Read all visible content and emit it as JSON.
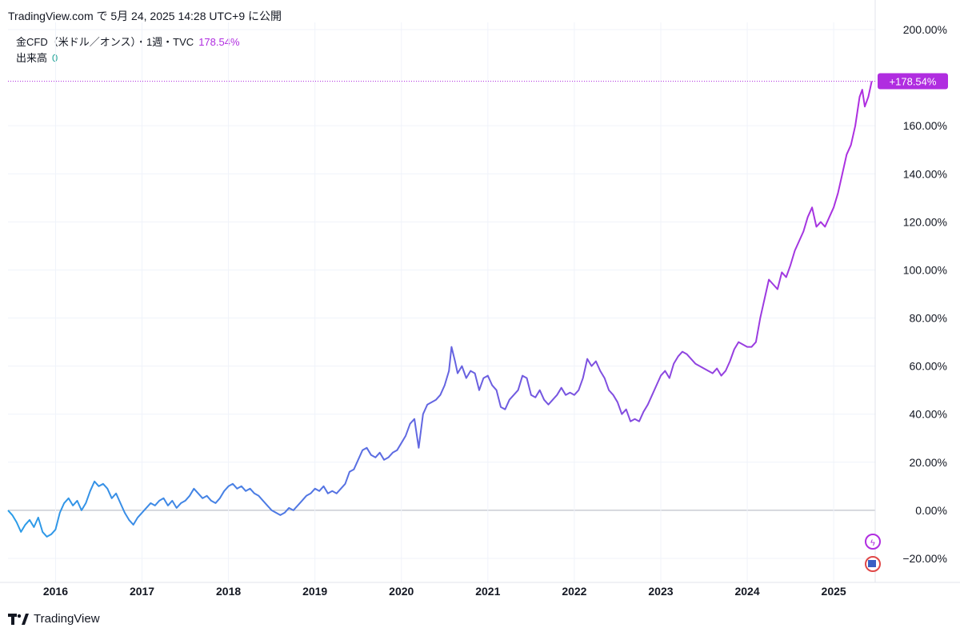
{
  "header": {
    "text": "TradingView.com で 5月 24, 2025 14:28 UTC+9 に公開"
  },
  "legend": {
    "symbol": "金CFD（米ドル／オンス）・1週・TVC",
    "value": "178.54%",
    "volume_label": "出来高",
    "volume_value": "0"
  },
  "footer": {
    "brand": "TradingView",
    "logo_icon": "tradingview-logo-icon"
  },
  "colors": {
    "line_start": "#2a9de8",
    "line_mid": "#6a5fe0",
    "line_end": "#b02de0",
    "badge": "#b02de0",
    "grid": "#f0f3fa",
    "zero_line": "#b2b5be"
  },
  "chart_data": {
    "type": "line",
    "y_axis": {
      "ticks": [
        "200.00%",
        "160.00%",
        "140.00%",
        "120.00%",
        "100.00%",
        "80.00%",
        "60.00%",
        "40.00%",
        "20.00%",
        "0.00%",
        "−20.00%"
      ],
      "tick_values": [
        200,
        160,
        140,
        120,
        100,
        80,
        60,
        40,
        20,
        0,
        -20
      ],
      "range": [
        -30,
        203
      ]
    },
    "x_axis": {
      "ticks": [
        "2016",
        "2017",
        "2018",
        "2019",
        "2020",
        "2021",
        "2022",
        "2023",
        "2024",
        "2025"
      ],
      "range": [
        2015.45,
        2025.48
      ]
    },
    "last_value": 178.54,
    "last_label": "+178.54%",
    "grid": true,
    "series": [
      {
        "points": [
          [
            2015.45,
            0
          ],
          [
            2015.5,
            -2
          ],
          [
            2015.55,
            -5
          ],
          [
            2015.6,
            -9
          ],
          [
            2015.65,
            -6
          ],
          [
            2015.7,
            -4
          ],
          [
            2015.75,
            -7
          ],
          [
            2015.8,
            -3
          ],
          [
            2015.85,
            -9
          ],
          [
            2015.9,
            -11
          ],
          [
            2015.95,
            -10
          ],
          [
            2016.0,
            -8
          ],
          [
            2016.05,
            -1
          ],
          [
            2016.1,
            3
          ],
          [
            2016.15,
            5
          ],
          [
            2016.2,
            2
          ],
          [
            2016.25,
            4
          ],
          [
            2016.3,
            0
          ],
          [
            2016.35,
            3
          ],
          [
            2016.4,
            8
          ],
          [
            2016.45,
            12
          ],
          [
            2016.5,
            10
          ],
          [
            2016.55,
            11
          ],
          [
            2016.6,
            9
          ],
          [
            2016.65,
            5
          ],
          [
            2016.7,
            7
          ],
          [
            2016.75,
            3
          ],
          [
            2016.8,
            -1
          ],
          [
            2016.85,
            -4
          ],
          [
            2016.9,
            -6
          ],
          [
            2016.95,
            -3
          ],
          [
            2017.0,
            -1
          ],
          [
            2017.05,
            1
          ],
          [
            2017.1,
            3
          ],
          [
            2017.15,
            2
          ],
          [
            2017.2,
            4
          ],
          [
            2017.25,
            5
          ],
          [
            2017.3,
            2
          ],
          [
            2017.35,
            4
          ],
          [
            2017.4,
            1
          ],
          [
            2017.45,
            3
          ],
          [
            2017.5,
            4
          ],
          [
            2017.55,
            6
          ],
          [
            2017.6,
            9
          ],
          [
            2017.65,
            7
          ],
          [
            2017.7,
            5
          ],
          [
            2017.75,
            6
          ],
          [
            2017.8,
            4
          ],
          [
            2017.85,
            3
          ],
          [
            2017.9,
            5
          ],
          [
            2017.95,
            8
          ],
          [
            2018.0,
            10
          ],
          [
            2018.05,
            11
          ],
          [
            2018.1,
            9
          ],
          [
            2018.15,
            10
          ],
          [
            2018.2,
            8
          ],
          [
            2018.25,
            9
          ],
          [
            2018.3,
            7
          ],
          [
            2018.35,
            6
          ],
          [
            2018.4,
            4
          ],
          [
            2018.45,
            2
          ],
          [
            2018.5,
            0
          ],
          [
            2018.55,
            -1
          ],
          [
            2018.6,
            -2
          ],
          [
            2018.65,
            -1
          ],
          [
            2018.7,
            1
          ],
          [
            2018.75,
            0
          ],
          [
            2018.8,
            2
          ],
          [
            2018.85,
            4
          ],
          [
            2018.9,
            6
          ],
          [
            2018.95,
            7
          ],
          [
            2019.0,
            9
          ],
          [
            2019.05,
            8
          ],
          [
            2019.1,
            10
          ],
          [
            2019.15,
            7
          ],
          [
            2019.2,
            8
          ],
          [
            2019.25,
            7
          ],
          [
            2019.3,
            9
          ],
          [
            2019.35,
            11
          ],
          [
            2019.4,
            16
          ],
          [
            2019.45,
            17
          ],
          [
            2019.5,
            21
          ],
          [
            2019.55,
            25
          ],
          [
            2019.6,
            26
          ],
          [
            2019.65,
            23
          ],
          [
            2019.7,
            22
          ],
          [
            2019.75,
            24
          ],
          [
            2019.8,
            21
          ],
          [
            2019.85,
            22
          ],
          [
            2019.9,
            24
          ],
          [
            2019.95,
            25
          ],
          [
            2020.0,
            28
          ],
          [
            2020.05,
            31
          ],
          [
            2020.1,
            36
          ],
          [
            2020.15,
            38
          ],
          [
            2020.2,
            26
          ],
          [
            2020.25,
            40
          ],
          [
            2020.3,
            44
          ],
          [
            2020.35,
            45
          ],
          [
            2020.4,
            46
          ],
          [
            2020.45,
            48
          ],
          [
            2020.5,
            52
          ],
          [
            2020.55,
            58
          ],
          [
            2020.58,
            68
          ],
          [
            2020.62,
            62
          ],
          [
            2020.65,
            57
          ],
          [
            2020.7,
            60
          ],
          [
            2020.75,
            55
          ],
          [
            2020.8,
            58
          ],
          [
            2020.85,
            57
          ],
          [
            2020.9,
            50
          ],
          [
            2020.95,
            55
          ],
          [
            2021.0,
            56
          ],
          [
            2021.05,
            52
          ],
          [
            2021.1,
            50
          ],
          [
            2021.15,
            43
          ],
          [
            2021.2,
            42
          ],
          [
            2021.25,
            46
          ],
          [
            2021.3,
            48
          ],
          [
            2021.35,
            50
          ],
          [
            2021.4,
            56
          ],
          [
            2021.45,
            55
          ],
          [
            2021.5,
            48
          ],
          [
            2021.55,
            47
          ],
          [
            2021.6,
            50
          ],
          [
            2021.65,
            46
          ],
          [
            2021.7,
            44
          ],
          [
            2021.75,
            46
          ],
          [
            2021.8,
            48
          ],
          [
            2021.85,
            51
          ],
          [
            2021.9,
            48
          ],
          [
            2021.95,
            49
          ],
          [
            2022.0,
            48
          ],
          [
            2022.05,
            50
          ],
          [
            2022.1,
            55
          ],
          [
            2022.15,
            63
          ],
          [
            2022.2,
            60
          ],
          [
            2022.25,
            62
          ],
          [
            2022.3,
            58
          ],
          [
            2022.35,
            55
          ],
          [
            2022.4,
            50
          ],
          [
            2022.45,
            48
          ],
          [
            2022.5,
            45
          ],
          [
            2022.55,
            40
          ],
          [
            2022.6,
            42
          ],
          [
            2022.65,
            37
          ],
          [
            2022.7,
            38
          ],
          [
            2022.75,
            37
          ],
          [
            2022.8,
            41
          ],
          [
            2022.85,
            44
          ],
          [
            2022.9,
            48
          ],
          [
            2022.95,
            52
          ],
          [
            2023.0,
            56
          ],
          [
            2023.05,
            58
          ],
          [
            2023.1,
            55
          ],
          [
            2023.15,
            61
          ],
          [
            2023.2,
            64
          ],
          [
            2023.25,
            66
          ],
          [
            2023.3,
            65
          ],
          [
            2023.35,
            63
          ],
          [
            2023.4,
            61
          ],
          [
            2023.45,
            60
          ],
          [
            2023.5,
            59
          ],
          [
            2023.55,
            58
          ],
          [
            2023.6,
            57
          ],
          [
            2023.65,
            59
          ],
          [
            2023.7,
            56
          ],
          [
            2023.75,
            58
          ],
          [
            2023.8,
            62
          ],
          [
            2023.85,
            67
          ],
          [
            2023.9,
            70
          ],
          [
            2023.95,
            69
          ],
          [
            2024.0,
            68
          ],
          [
            2024.05,
            68
          ],
          [
            2024.1,
            70
          ],
          [
            2024.15,
            80
          ],
          [
            2024.2,
            88
          ],
          [
            2024.25,
            96
          ],
          [
            2024.3,
            94
          ],
          [
            2024.35,
            92
          ],
          [
            2024.4,
            99
          ],
          [
            2024.45,
            97
          ],
          [
            2024.5,
            102
          ],
          [
            2024.55,
            108
          ],
          [
            2024.6,
            112
          ],
          [
            2024.65,
            116
          ],
          [
            2024.7,
            122
          ],
          [
            2024.75,
            126
          ],
          [
            2024.8,
            118
          ],
          [
            2024.85,
            120
          ],
          [
            2024.9,
            118
          ],
          [
            2024.95,
            122
          ],
          [
            2025.0,
            126
          ],
          [
            2025.05,
            132
          ],
          [
            2025.1,
            140
          ],
          [
            2025.15,
            148
          ],
          [
            2025.2,
            152
          ],
          [
            2025.25,
            160
          ],
          [
            2025.3,
            172
          ],
          [
            2025.33,
            175
          ],
          [
            2025.36,
            168
          ],
          [
            2025.4,
            172
          ],
          [
            2025.44,
            178.54
          ]
        ]
      }
    ]
  }
}
